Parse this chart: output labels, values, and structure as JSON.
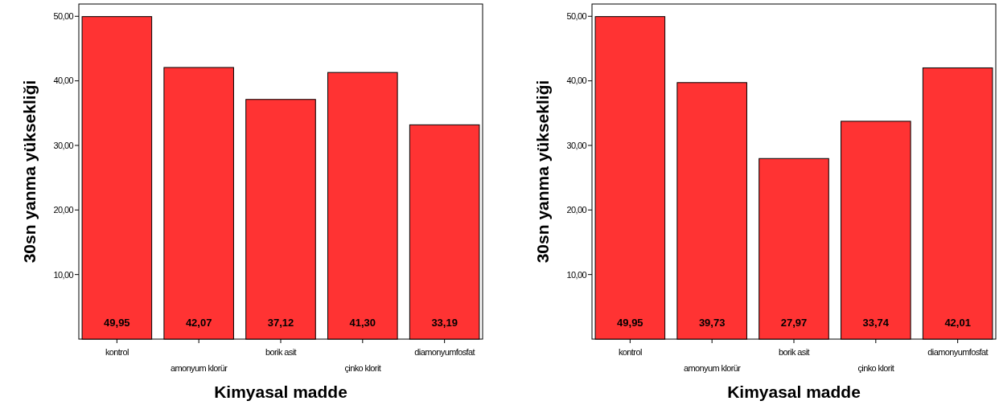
{
  "chart_data": [
    {
      "type": "bar",
      "xlabel": "Kimyasal madde",
      "ylabel": "30sn yanma yüksekliği",
      "categories": [
        "kontrol",
        "amonyum klorür",
        "borik asit",
        "çinko klorit",
        "diamonyumfosfat"
      ],
      "values": [
        49.95,
        42.07,
        37.12,
        41.3,
        33.19
      ],
      "value_labels": [
        "49,95",
        "42,07",
        "37,12",
        "41,30",
        "33,19"
      ],
      "color": "#ff3333",
      "ylim": [
        0,
        51.9
      ],
      "yticks": [
        {
          "value": 10,
          "label": "10,00"
        },
        {
          "value": 20,
          "label": "20,00"
        },
        {
          "value": 30,
          "label": "30,00"
        },
        {
          "value": 40,
          "label": "40,00"
        },
        {
          "value": 50,
          "label": "50,00"
        }
      ]
    },
    {
      "type": "bar",
      "xlabel": "Kimyasal madde",
      "ylabel": "30sn yanma yüksekliği",
      "categories": [
        "kontrol",
        "amonyum klorür",
        "borik asit",
        "çinko klorit",
        "diamonyumfosfat"
      ],
      "values": [
        49.95,
        39.73,
        27.97,
        33.74,
        42.01
      ],
      "value_labels": [
        "49,95",
        "39,73",
        "27,97",
        "33,74",
        "42,01"
      ],
      "color": "#ff3333",
      "ylim": [
        0,
        51.9
      ],
      "yticks": [
        {
          "value": 10,
          "label": "10,00"
        },
        {
          "value": 20,
          "label": "20,00"
        },
        {
          "value": 30,
          "label": "30,00"
        },
        {
          "value": 40,
          "label": "40,00"
        },
        {
          "value": 50,
          "label": "50,00"
        }
      ]
    }
  ]
}
